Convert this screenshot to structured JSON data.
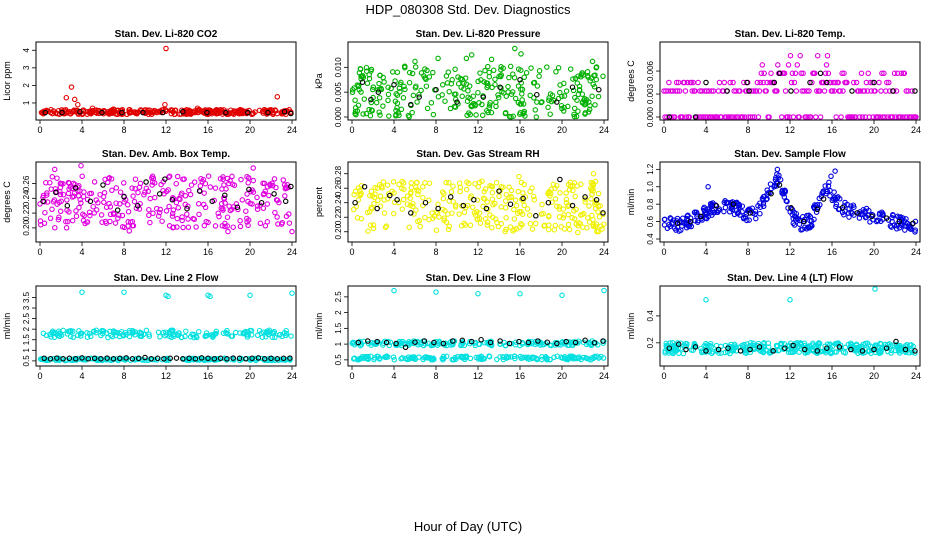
{
  "page": {
    "title": "HDP_080308  Std. Dev. Diagnostics",
    "xlabel": "Hour of Day (UTC)"
  },
  "chart_data": [
    {
      "type": "scatter",
      "title": "Stan. Dev. Li-820 CO2",
      "xlabel": "",
      "ylabel": "Licor ppm",
      "xlim": [
        0,
        24
      ],
      "ylim": [
        0.2,
        4.3
      ],
      "xticks": [
        0,
        4,
        8,
        12,
        16,
        20,
        24
      ],
      "yticks": [
        1,
        2,
        3,
        4
      ],
      "series": [
        {
          "name": "primary",
          "color": "#e00000",
          "band": [
            0.35,
            0.62
          ],
          "x": [
            2.5,
            3.0,
            3.3,
            3.6,
            12.0,
            22.6,
            11.9,
            5.0,
            7.0,
            15.0
          ],
          "values": [
            1.3,
            1.9,
            1.2,
            0.9,
            4.1,
            1.35,
            0.9,
            0.7,
            0.65,
            0.7
          ]
        },
        {
          "name": "reference",
          "color": "#000000",
          "band": [
            0.4,
            0.5
          ],
          "x": [
            0.5,
            2.1,
            3.8,
            5.9,
            7.8,
            9.8,
            11.7,
            13.6,
            15.9,
            17.7,
            19.8,
            21.7,
            23.3,
            23.9
          ],
          "values": [
            0.45,
            0.45,
            0.5,
            0.45,
            0.45,
            0.45,
            0.45,
            0.5,
            0.45,
            0.45,
            0.45,
            0.45,
            0.5,
            0.4
          ]
        }
      ]
    },
    {
      "type": "scatter",
      "title": "Stan. Dev. Li-820 Pressure",
      "xlabel": "",
      "ylabel": "kPa",
      "xlim": [
        0,
        24
      ],
      "ylim": [
        0.0,
        0.0145
      ],
      "xticks": [
        0,
        4,
        8,
        12,
        16,
        20,
        24
      ],
      "yticks": [
        0.0,
        0.005,
        0.01
      ],
      "yticklabels": [
        "0.000",
        "0.005",
        "0.010"
      ],
      "series": [
        {
          "name": "primary",
          "color": "#00b000",
          "band": [
            0.0,
            0.0105
          ],
          "x": [
            15.5,
            16.1,
            10.9,
            11.4,
            13.3,
            8.2,
            22.9,
            6.0
          ],
          "values": [
            0.0138,
            0.0127,
            0.0118,
            0.0125,
            0.0116,
            0.0118,
            0.0112,
            0.0112
          ]
        },
        {
          "name": "reference",
          "color": "#000000",
          "band": [
            0.002,
            0.0075
          ],
          "x": [
            1.0,
            1.8,
            2.5,
            4.0,
            5.6,
            6.4,
            8.0,
            10.0,
            12.5,
            14.1,
            16.0,
            17.6,
            19.5,
            21.0,
            23.5
          ],
          "values": [
            0.007,
            0.0035,
            0.005,
            0.0065,
            0.0025,
            0.004,
            0.0055,
            0.003,
            0.004,
            0.006,
            0.0075,
            0.0045,
            0.003,
            0.006,
            0.0055
          ]
        }
      ]
    },
    {
      "type": "scatter",
      "title": "Stan. Dev. Li-820 Temp.",
      "xlabel": "",
      "ylabel": "degrees C",
      "xlim": [
        0,
        24
      ],
      "ylim": [
        0.0,
        0.0094
      ],
      "xticks": [
        0,
        4,
        8,
        12,
        16,
        20,
        24
      ],
      "yticks": [
        0.0,
        0.003,
        0.006
      ],
      "yticklabels": [
        "0.000",
        "0.003",
        "0.006"
      ],
      "levels": [
        0.0,
        0.0034,
        0.0045,
        0.0057,
        0.0068,
        0.008
      ],
      "series": [
        {
          "name": "primary",
          "color": "#e000e0"
        },
        {
          "name": "reference",
          "color": "#000000",
          "x": [
            0.5,
            3.0,
            4.0,
            6.0,
            7.9,
            8.1,
            10.5,
            11.0,
            12.1,
            13.9,
            14.9,
            15.5,
            17.9,
            20.0,
            21.8,
            23.9
          ],
          "values": [
            0.0,
            0.0,
            0.0045,
            0.0034,
            0.0045,
            0.0034,
            0.0045,
            0.0057,
            0.0034,
            0.0045,
            0.0057,
            0.0045,
            0.0034,
            0.0045,
            0.0034,
            0.0034
          ]
        }
      ]
    },
    {
      "type": "scatter",
      "title": "Stan. Dev. Amb. Box Temp.",
      "xlabel": "",
      "ylabel": "degrees C",
      "xlim": [
        0,
        24
      ],
      "ylim": [
        0.185,
        0.285
      ],
      "xticks": [
        0,
        4,
        8,
        12,
        16,
        20,
        24
      ],
      "yticks": [
        0.2,
        0.22,
        0.24,
        0.26
      ],
      "yticklabels": [
        "0.20",
        "0.22",
        "0.24",
        "0.26"
      ],
      "series": [
        {
          "name": "primary",
          "color": "#e000e0",
          "band": [
            0.2,
            0.27
          ],
          "x": [
            3.9,
            1.4,
            20.3,
            8.5,
            17.9,
            24.0
          ],
          "values": [
            0.284,
            0.279,
            0.281,
            0.196,
            0.195,
            0.195
          ]
        },
        {
          "name": "reference",
          "color": "#000000",
          "band": [
            0.21,
            0.26
          ],
          "x": [
            0.3,
            1.5,
            2.6,
            3.4,
            4.8,
            6.0,
            7.4,
            8.0,
            9.3,
            10.1,
            11.4,
            11.9,
            12.6,
            14.0,
            15.2,
            16.4,
            17.6,
            18.8,
            19.9,
            21.1,
            22.3,
            23.4,
            23.9
          ],
          "values": [
            0.236,
            0.248,
            0.23,
            0.254,
            0.236,
            0.258,
            0.224,
            0.242,
            0.23,
            0.262,
            0.246,
            0.266,
            0.238,
            0.226,
            0.25,
            0.236,
            0.244,
            0.228,
            0.252,
            0.234,
            0.246,
            0.236,
            0.256
          ]
        }
      ]
    },
    {
      "type": "scatter",
      "title": "Stan. Dev. Gas Stream RH",
      "xlabel": "",
      "ylabel": "percent",
      "xlim": [
        0,
        24
      ],
      "ylim": [
        0.19,
        0.292
      ],
      "xticks": [
        0,
        4,
        8,
        12,
        16,
        20,
        24
      ],
      "yticks": [
        0.2,
        0.22,
        0.24,
        0.26,
        0.28
      ],
      "yticklabels": [
        "0.20",
        "0.22",
        "0.24",
        "0.26",
        "0.28"
      ],
      "series": [
        {
          "name": "primary",
          "color": "#f0f000",
          "band": [
            0.2,
            0.27
          ],
          "x": [
            23.0,
            15.9,
            21.5
          ],
          "values": [
            0.28,
            0.276,
            0.199
          ]
        },
        {
          "name": "reference",
          "color": "#000000",
          "band": [
            0.215,
            0.265
          ],
          "x": [
            0.3,
            1.2,
            2.4,
            3.6,
            4.3,
            5.6,
            7.0,
            8.2,
            9.4,
            10.6,
            11.6,
            12.8,
            14.0,
            15.1,
            16.3,
            17.5,
            18.7,
            19.8,
            21.0,
            22.2,
            23.3,
            23.9
          ],
          "values": [
            0.24,
            0.262,
            0.232,
            0.25,
            0.244,
            0.226,
            0.24,
            0.232,
            0.248,
            0.236,
            0.244,
            0.232,
            0.256,
            0.238,
            0.246,
            0.222,
            0.24,
            0.272,
            0.236,
            0.248,
            0.244,
            0.226
          ]
        }
      ]
    },
    {
      "type": "scatter",
      "title": "Stan. Dev. Sample Flow",
      "xlabel": "",
      "ylabel": "ml/min",
      "xlim": [
        0,
        24
      ],
      "ylim": [
        0.4,
        1.25
      ],
      "xticks": [
        0,
        4,
        8,
        12,
        16,
        20,
        24
      ],
      "yticks": [
        0.4,
        0.6,
        0.8,
        1.0,
        1.2
      ],
      "yticklabels": [
        "0.4",
        "0.6",
        "0.8",
        "1.0",
        "1.2"
      ],
      "profile_x": [
        0,
        1,
        2,
        3,
        4,
        5,
        6,
        7,
        8,
        9,
        9.5,
        10.5,
        11,
        11.5,
        12,
        12.5,
        13,
        14,
        14.5,
        15,
        15.5,
        16,
        16.5,
        17,
        18,
        19,
        20,
        21,
        22,
        23,
        24
      ],
      "profile_y": [
        0.6,
        0.56,
        0.58,
        0.64,
        0.7,
        0.76,
        0.78,
        0.74,
        0.68,
        0.72,
        0.85,
        1.05,
        1.1,
        0.9,
        0.72,
        0.62,
        0.58,
        0.6,
        0.78,
        0.88,
        0.95,
        0.92,
        0.82,
        0.75,
        0.72,
        0.68,
        0.65,
        0.62,
        0.6,
        0.58,
        0.55
      ],
      "series": [
        {
          "name": "primary",
          "color": "#0000e0",
          "x": [
            4.2,
            10.8,
            15.9,
            16.3,
            15.7
          ],
          "values": [
            1.0,
            1.2,
            1.12,
            1.18,
            1.05
          ]
        },
        {
          "name": "reference",
          "color": "#000000",
          "x": [
            1.3,
            2.5,
            3.5,
            5.0,
            6.6,
            8.2,
            10.2,
            11.0,
            12.1,
            13.3,
            14.6,
            15.2,
            17.0,
            18.4,
            19.8,
            21.2,
            22.4,
            23.7
          ],
          "values": [
            0.58,
            0.6,
            0.66,
            0.78,
            0.8,
            0.7,
            0.92,
            1.02,
            0.76,
            0.6,
            0.74,
            0.86,
            0.76,
            0.7,
            0.66,
            0.64,
            0.6,
            0.58
          ]
        }
      ]
    },
    {
      "type": "scatter",
      "title": "Stan. Dev. Line 2 Flow",
      "xlabel": "",
      "ylabel": "ml/min",
      "xlim": [
        0,
        24
      ],
      "ylim": [
        0.4,
        3.9
      ],
      "xticks": [
        0,
        4,
        8,
        12,
        16,
        20,
        24
      ],
      "yticks": [
        0.5,
        1.0,
        1.5,
        2.0,
        2.5,
        3.0,
        3.5
      ],
      "yticklabels": [
        "0.5",
        "1",
        "1.5",
        "2",
        "2.5",
        "3",
        "3.5"
      ],
      "series": [
        {
          "name": "primary",
          "color": "#00e0e0",
          "bands": [
            [
              1.6,
              1.95
            ],
            [
              0.52,
              0.62
            ]
          ],
          "x": [
            4.0,
            8.0,
            12.0,
            16.0,
            20.0,
            24.0,
            12.2,
            16.2
          ],
          "values": [
            3.75,
            3.75,
            3.6,
            3.6,
            3.6,
            3.7,
            3.55,
            3.55
          ]
        },
        {
          "name": "reference",
          "color": "#000000",
          "band": [
            0.58,
            0.68
          ],
          "x": [
            0.4,
            1.0,
            1.6,
            2.2,
            2.8,
            3.4,
            4.0,
            4.6,
            5.2,
            5.8,
            6.4,
            7.0,
            7.6,
            8.2,
            8.8,
            9.4,
            10.0,
            10.6,
            11.2,
            11.8,
            12.4,
            13.0,
            13.6,
            14.2,
            14.8,
            15.4,
            16.0,
            16.6,
            17.2,
            17.8,
            18.4,
            19.0,
            19.6,
            20.2,
            20.8,
            21.4,
            22.0,
            22.6,
            23.2,
            23.8
          ],
          "values": [
            0.62,
            0.6,
            0.63,
            0.6,
            0.62,
            0.6,
            0.64,
            0.6,
            0.62,
            0.6,
            0.63,
            0.6,
            0.62,
            0.64,
            0.6,
            0.62,
            0.66,
            0.6,
            0.62,
            0.6,
            0.62,
            0.63,
            0.6,
            0.62,
            0.6,
            0.64,
            0.62,
            0.6,
            0.62,
            0.6,
            0.63,
            0.62,
            0.6,
            0.62,
            0.64,
            0.6,
            0.62,
            0.6,
            0.62,
            0.63
          ]
        }
      ]
    },
    {
      "type": "scatter",
      "title": "Stan. Dev. Line 3 Flow",
      "xlabel": "",
      "ylabel": "ml/min",
      "xlim": [
        0,
        24
      ],
      "ylim": [
        0.4,
        2.75
      ],
      "xticks": [
        0,
        4,
        8,
        12,
        16,
        20,
        24
      ],
      "yticks": [
        0.5,
        1.0,
        1.5,
        2.0,
        2.5
      ],
      "yticklabels": [
        "0.5",
        "1",
        "1.5",
        "2",
        "2.5"
      ],
      "series": [
        {
          "name": "primary",
          "color": "#00e0e0",
          "bands": [
            [
              0.95,
              1.1
            ],
            [
              0.5,
              0.62
            ]
          ],
          "x": [
            4.0,
            8.0,
            12.0,
            16.0,
            20.0,
            24.0
          ],
          "values": [
            2.7,
            2.65,
            2.6,
            2.6,
            2.55,
            2.7
          ]
        },
        {
          "name": "reference",
          "color": "#000000",
          "band": [
            0.9,
            1.2
          ],
          "x": [
            0.6,
            1.5,
            2.4,
            3.3,
            4.2,
            5.1,
            6.0,
            6.9,
            7.8,
            8.7,
            9.6,
            10.5,
            11.4,
            12.3,
            13.2,
            14.1,
            15.0,
            15.9,
            16.8,
            17.7,
            18.6,
            19.5,
            20.4,
            21.3,
            22.2,
            23.1,
            23.9
          ],
          "values": [
            1.05,
            1.1,
            1.08,
            1.05,
            1.02,
            0.9,
            1.06,
            1.1,
            1.05,
            1.02,
            1.1,
            1.12,
            1.08,
            1.14,
            1.05,
            1.1,
            1.02,
            1.08,
            1.05,
            1.1,
            1.06,
            1.02,
            1.08,
            1.05,
            1.12,
            1.04,
            1.1
          ]
        }
      ]
    },
    {
      "type": "scatter",
      "title": "Stan. Dev. Line 4 (LT) Flow",
      "xlabel": "",
      "ylabel": "ml/min",
      "xlim": [
        0,
        24
      ],
      "ylim": [
        0.05,
        0.6
      ],
      "xticks": [
        0,
        4,
        8,
        12,
        16,
        20,
        24
      ],
      "yticks": [
        0.2,
        0.4
      ],
      "yticklabels": [
        "0.2",
        "0.4"
      ],
      "series": [
        {
          "name": "primary",
          "color": "#00e0e0",
          "band": [
            0.12,
            0.2
          ],
          "x": [
            4.0,
            12.0,
            20.1
          ],
          "values": [
            0.52,
            0.52,
            0.6
          ]
        },
        {
          "name": "reference",
          "color": "#000000",
          "band": [
            0.13,
            0.19
          ],
          "x": [
            0.5,
            1.4,
            2.1,
            3.0,
            4.0,
            5.2,
            6.1,
            7.3,
            8.2,
            9.1,
            10.4,
            11.5,
            12.3,
            13.4,
            14.6,
            15.5,
            16.7,
            17.8,
            18.9,
            20.0,
            21.2,
            22.1,
            23.0,
            23.9
          ],
          "values": [
            0.16,
            0.19,
            0.15,
            0.17,
            0.14,
            0.15,
            0.16,
            0.14,
            0.15,
            0.17,
            0.14,
            0.16,
            0.18,
            0.15,
            0.14,
            0.16,
            0.17,
            0.15,
            0.14,
            0.15,
            0.16,
            0.21,
            0.15,
            0.14
          ]
        }
      ]
    }
  ]
}
